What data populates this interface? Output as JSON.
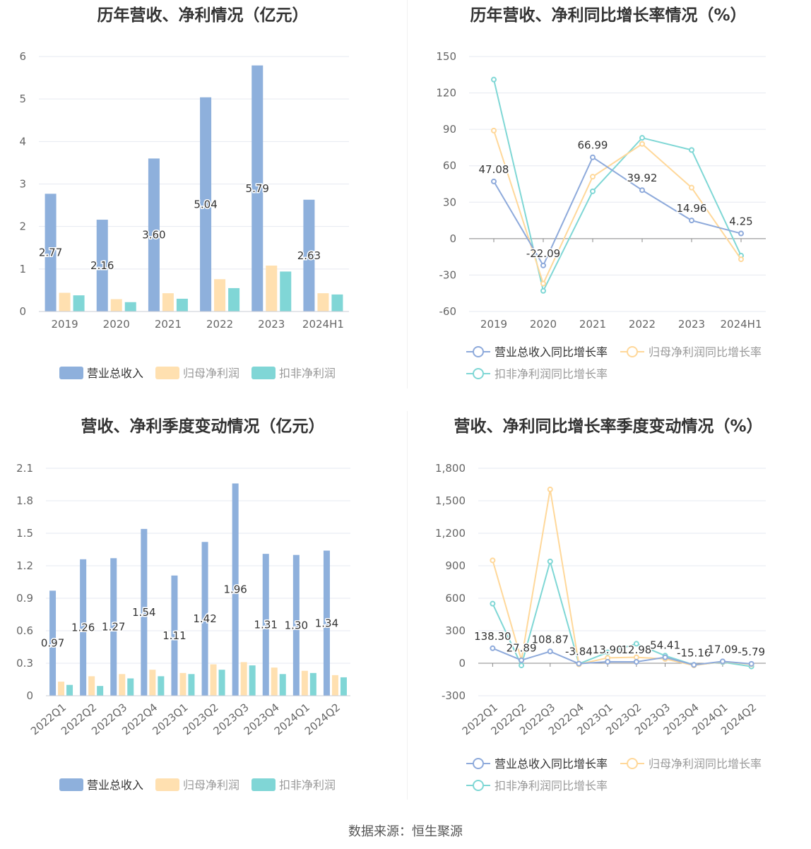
{
  "colors": {
    "revenue_bar": "#8eb0dc",
    "net_profit_bar": "#ffe0b0",
    "deducted_profit_bar": "#80d6d6",
    "revenue_line": "#8eaadb",
    "net_profit_line": "#ffd89a",
    "deducted_profit_line": "#7fd7d5"
  },
  "source": "数据来源：恒生聚源",
  "charts": [
    {
      "title": "历年营收、净利情况（亿元）",
      "chart_data": {
        "type": "bar",
        "categories": [
          "2019",
          "2020",
          "2021",
          "2022",
          "2023",
          "2024H1"
        ],
        "ylim": [
          0,
          6
        ],
        "yticks": [
          "0",
          "1",
          "2",
          "3",
          "4",
          "5",
          "6"
        ],
        "series": [
          {
            "name": "营业总收入",
            "values": [
              2.77,
              2.16,
              3.6,
              5.04,
              5.79,
              2.63
            ],
            "labels": [
              "2.77",
              "2.16",
              "3.60",
              "5.04",
              "5.79",
              "2.63"
            ]
          },
          {
            "name": "归母净利润",
            "values": [
              0.44,
              0.29,
              0.43,
              0.76,
              1.08,
              0.43
            ]
          },
          {
            "name": "扣非净利润",
            "values": [
              0.38,
              0.22,
              0.3,
              0.55,
              0.94,
              0.4
            ]
          }
        ]
      }
    },
    {
      "title": "历年营收、净利同比增长率情况（%）",
      "chart_data": {
        "type": "line",
        "categories": [
          "2019",
          "2020",
          "2021",
          "2022",
          "2023",
          "2024H1"
        ],
        "ylim": [
          -60,
          150
        ],
        "yticks": [
          "-60",
          "-30",
          "0",
          "30",
          "60",
          "90",
          "120",
          "150"
        ],
        "series": [
          {
            "name": "营业总收入同比增长率",
            "values": [
              47.08,
              -22.09,
              66.99,
              39.92,
              14.96,
              4.25
            ],
            "labels": [
              "47.08",
              "-22.09",
              "66.99",
              "39.92",
              "14.96",
              "4.25"
            ]
          },
          {
            "name": "归母净利润同比增长率",
            "values": [
              89,
              -37,
              51,
              78,
              42,
              -17
            ]
          },
          {
            "name": "扣非净利润同比增长率",
            "values": [
              131,
              -43,
              39,
              83,
              73,
              -14
            ]
          }
        ]
      }
    },
    {
      "title": "营收、净利季度变动情况（亿元）",
      "chart_data": {
        "type": "bar",
        "categories": [
          "2022Q1",
          "2022Q2",
          "2022Q3",
          "2022Q4",
          "2023Q1",
          "2023Q2",
          "2023Q3",
          "2023Q4",
          "2024Q1",
          "2024Q2"
        ],
        "ylim": [
          0,
          2.1
        ],
        "yticks": [
          "0",
          "0.3",
          "0.6",
          "0.9",
          "1.2",
          "1.5",
          "1.8",
          "2.1"
        ],
        "series": [
          {
            "name": "营业总收入",
            "values": [
              0.97,
              1.26,
              1.27,
              1.54,
              1.11,
              1.42,
              1.96,
              1.31,
              1.3,
              1.34
            ],
            "labels": [
              "0.97",
              "1.26",
              "1.27",
              "1.54",
              "1.11",
              "1.42",
              "1.96",
              "1.31",
              "1.30",
              "1.34"
            ]
          },
          {
            "name": "归母净利润",
            "values": [
              0.13,
              0.18,
              0.2,
              0.24,
              0.21,
              0.29,
              0.31,
              0.26,
              0.23,
              0.19
            ]
          },
          {
            "name": "扣非净利润",
            "values": [
              0.1,
              0.09,
              0.16,
              0.18,
              0.2,
              0.24,
              0.28,
              0.2,
              0.21,
              0.17
            ]
          }
        ]
      }
    },
    {
      "title": "营收、净利同比增长率季度变动情况（%）",
      "chart_data": {
        "type": "line",
        "categories": [
          "2022Q1",
          "2022Q2",
          "2022Q3",
          "2022Q4",
          "2023Q1",
          "2023Q2",
          "2023Q3",
          "2023Q4",
          "2024Q1",
          "2024Q2"
        ],
        "ylim": [
          -300,
          1800
        ],
        "yticks": [
          "-300",
          "0",
          "300",
          "600",
          "900",
          "1,200",
          "1,500",
          "1,800"
        ],
        "series": [
          {
            "name": "营业总收入同比增长率",
            "values": [
              138.3,
              27.89,
              108.87,
              -3.84,
              13.9,
              12.98,
              54.41,
              -15.16,
              17.09,
              -5.79
            ],
            "labels": [
              "138.30",
              "27.89",
              "108.87",
              "-3.84",
              "13.90",
              "12.98",
              "54.41",
              "-15.16",
              "17.09",
              "-5.79"
            ]
          },
          {
            "name": "归母净利润同比增长率",
            "values": [
              950,
              30,
              1605,
              -10,
              50,
              55,
              40,
              -20,
              15,
              -10
            ]
          },
          {
            "name": "扣非净利润同比增长率",
            "values": [
              550,
              -20,
              940,
              -5,
              100,
              180,
              70,
              -15,
              10,
              -30
            ]
          }
        ]
      }
    }
  ]
}
